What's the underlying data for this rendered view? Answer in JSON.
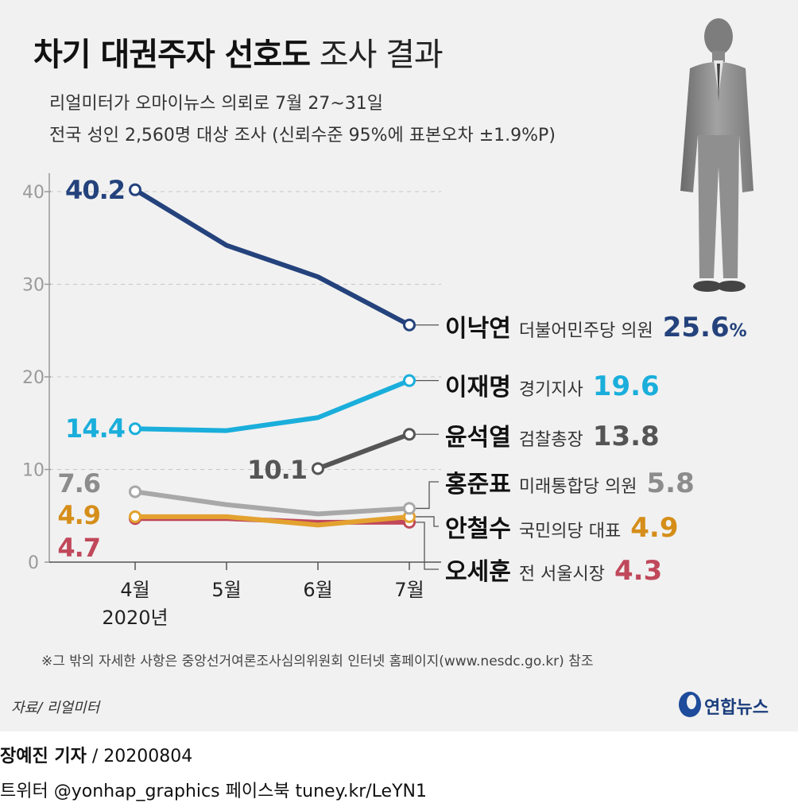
{
  "title_bold": "차기 대권주자 선호도",
  "title_rest": "조사 결과",
  "subtitle_lines": [
    "리얼미터가 오마이뉴스 의뢰로 7월 27~31일",
    "전국 성인 2,560명 대상 조사 (신뢰수준 95%에 표본오차 ±1.9%P)"
  ],
  "note": "※그 밖의 자세한 사항은 중앙선거여론조사심의위원회 인터넷 홈페이지(www.nesdc.go.kr) 참조",
  "source": "자료/ 리얼미터",
  "logo_text": "연합뉴스",
  "footer": {
    "reporter": "장예진 기자",
    "date": " / 20200804",
    "social": "트위터 @yonhap_graphics  페이스북 tuney.kr/LeYN1"
  },
  "chart_data": {
    "type": "line",
    "categories": [
      "4월",
      "5월",
      "6월",
      "7월"
    ],
    "year_label": "2020년",
    "y_ticks": [
      0,
      10,
      20,
      30,
      40
    ],
    "ylim": [
      0,
      45
    ],
    "grid": true,
    "series": [
      {
        "name": "이낙연",
        "desc": "더불어민주당 의원",
        "values": [
          40.2,
          34.2,
          30.8,
          25.6
        ],
        "start_label": "40.2",
        "end_label": "25.6",
        "end_unit": "%",
        "color": "#24427c"
      },
      {
        "name": "이재명",
        "desc": "경기지사",
        "values": [
          14.4,
          14.2,
          15.6,
          19.6
        ],
        "start_label": "14.4",
        "end_label": "19.6",
        "end_unit": "",
        "color": "#1aaedb"
      },
      {
        "name": "윤석열",
        "desc": "검찰총장",
        "values": [
          null,
          null,
          10.1,
          13.8
        ],
        "start_label": "10.1",
        "end_label": "13.8",
        "end_unit": "",
        "color": "#555555"
      },
      {
        "name": "홍준표",
        "desc": "미래통합당 의원",
        "values": [
          7.6,
          6.2,
          5.2,
          5.8
        ],
        "start_label": "7.6",
        "end_label": "5.8",
        "end_unit": "",
        "color": "#a8a8a8",
        "label_color": "#8c8c8c"
      },
      {
        "name": "안철수",
        "desc": "국민의당 대표",
        "values": [
          4.9,
          4.9,
          4.0,
          4.9
        ],
        "start_label": "4.9",
        "end_label": "4.9",
        "end_unit": "",
        "color": "#e3a22f",
        "label_color": "#d58e1a"
      },
      {
        "name": "오세훈",
        "desc": "전 서울시장",
        "values": [
          4.7,
          4.7,
          4.3,
          4.3
        ],
        "start_label": "4.7",
        "end_label": "4.3",
        "end_unit": "",
        "color": "#c0485a"
      }
    ]
  }
}
